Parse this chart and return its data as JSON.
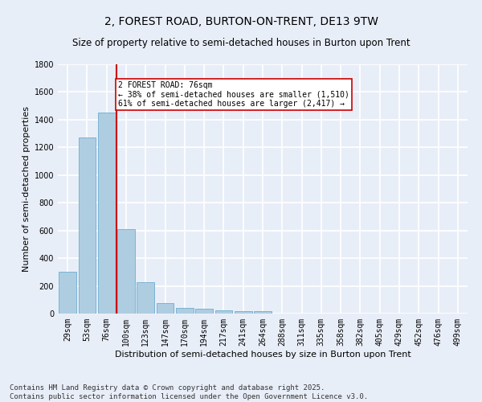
{
  "title": "2, FOREST ROAD, BURTON-ON-TRENT, DE13 9TW",
  "subtitle": "Size of property relative to semi-detached houses in Burton upon Trent",
  "xlabel": "Distribution of semi-detached houses by size in Burton upon Trent",
  "ylabel": "Number of semi-detached properties",
  "categories": [
    "29sqm",
    "53sqm",
    "76sqm",
    "100sqm",
    "123sqm",
    "147sqm",
    "170sqm",
    "194sqm",
    "217sqm",
    "241sqm",
    "264sqm",
    "288sqm",
    "311sqm",
    "335sqm",
    "358sqm",
    "382sqm",
    "405sqm",
    "429sqm",
    "452sqm",
    "476sqm",
    "499sqm"
  ],
  "values": [
    300,
    1270,
    1450,
    610,
    225,
    75,
    40,
    35,
    25,
    18,
    15,
    0,
    0,
    0,
    0,
    0,
    0,
    0,
    0,
    0,
    0
  ],
  "bar_color": "#aecde1",
  "bar_edge_color": "#5ba3c9",
  "highlight_index": 2,
  "highlight_color": "#cc0000",
  "annotation_line1": "2 FOREST ROAD: 76sqm",
  "annotation_line2": "← 38% of semi-detached houses are smaller (1,510)",
  "annotation_line3": "61% of semi-detached houses are larger (2,417) →",
  "annotation_box_color": "#ffffff",
  "annotation_box_edge": "#cc0000",
  "ylim": [
    0,
    1800
  ],
  "yticks": [
    0,
    200,
    400,
    600,
    800,
    1000,
    1200,
    1400,
    1600,
    1800
  ],
  "footer_line1": "Contains HM Land Registry data © Crown copyright and database right 2025.",
  "footer_line2": "Contains public sector information licensed under the Open Government Licence v3.0.",
  "bg_color": "#e8eef8",
  "grid_color": "#ffffff",
  "title_fontsize": 10,
  "subtitle_fontsize": 8.5,
  "tick_fontsize": 7,
  "ylabel_fontsize": 8,
  "xlabel_fontsize": 8,
  "footer_fontsize": 6.5
}
